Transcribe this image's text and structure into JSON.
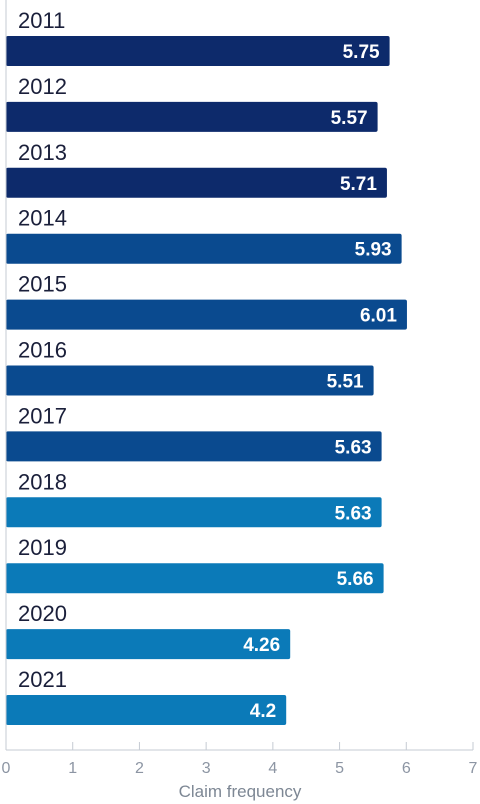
{
  "chart_data": {
    "type": "bar",
    "orientation": "horizontal",
    "categories": [
      "2011",
      "2012",
      "2013",
      "2014",
      "2015",
      "2016",
      "2017",
      "2018",
      "2019",
      "2020",
      "2021"
    ],
    "values": [
      5.75,
      5.57,
      5.71,
      5.93,
      6.01,
      5.51,
      5.63,
      5.63,
      5.66,
      4.26,
      4.2
    ],
    "value_labels": [
      "5.75",
      "5.57",
      "5.71",
      "5.93",
      "6.01",
      "5.51",
      "5.63",
      "5.63",
      "5.66",
      "4.26",
      "4.2"
    ],
    "bar_colors": [
      "#0d2a6b",
      "#0d2a6b",
      "#0d2a6b",
      "#0a4a8f",
      "#0a4a8f",
      "#0a4a8f",
      "#0a4a8f",
      "#0b7ab8",
      "#0b7ab8",
      "#0b7ab8",
      "#0b7ab8"
    ],
    "xlabel": "Claim frequency",
    "xlim": [
      0,
      7
    ],
    "xticks": [
      "0",
      "1",
      "2",
      "3",
      "4",
      "5",
      "6",
      "7"
    ],
    "grid": false
  }
}
